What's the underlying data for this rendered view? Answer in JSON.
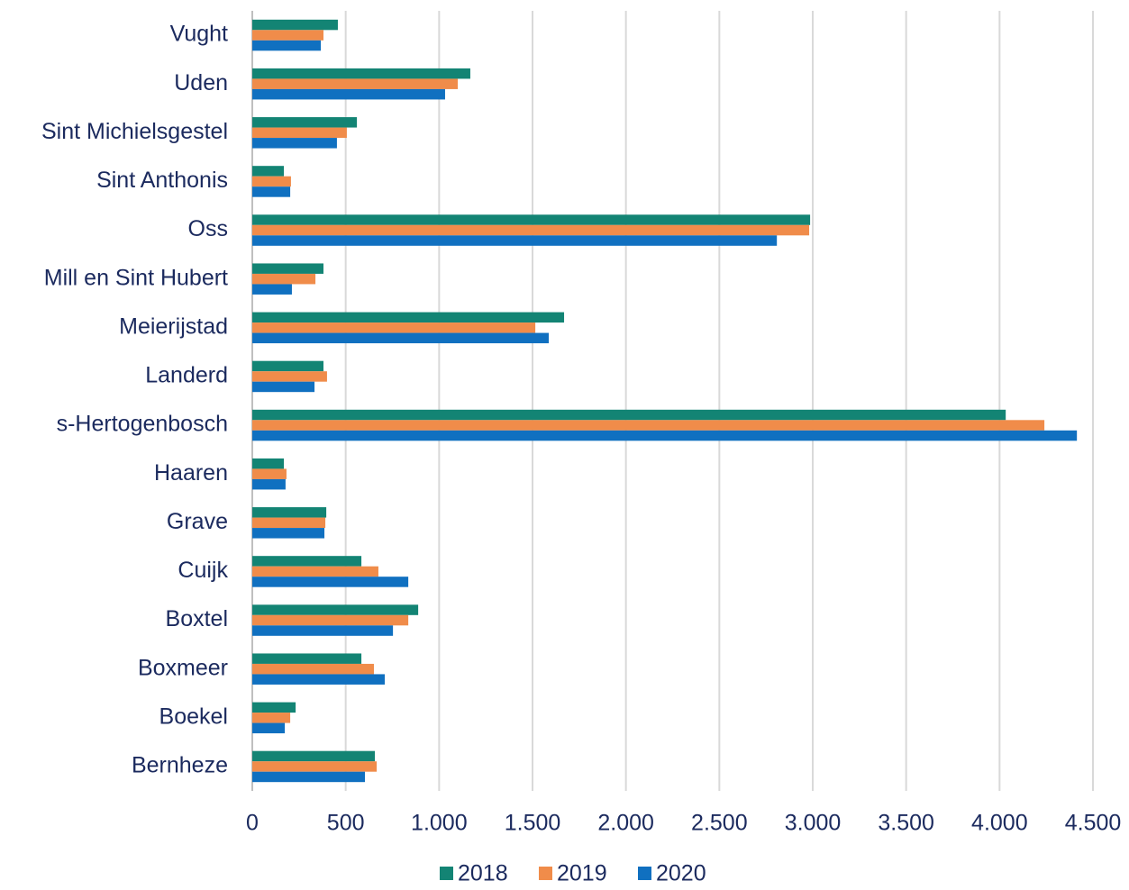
{
  "chart_data": {
    "type": "bar",
    "orientation": "horizontal",
    "categories": [
      "Vught",
      "Uden",
      "Sint Michielsgestel",
      "Sint Anthonis",
      "Oss",
      "Mill en Sint Hubert",
      "Meierijstad",
      "Landerd",
      "s-Hertogenbosch",
      "Haaren",
      "Grave",
      "Cuijk",
      "Boxtel",
      "Boxmeer",
      "Boekel",
      "Bernheze"
    ],
    "series": [
      {
        "name": "2018",
        "color": "#138474",
        "values": [
          458,
          1167,
          560,
          169,
          2986,
          381,
          1669,
          381,
          4033,
          169,
          396,
          584,
          888,
          584,
          232,
          656
        ]
      },
      {
        "name": "2019",
        "color": "#f08c4a",
        "values": [
          381,
          1100,
          506,
          207,
          2981,
          338,
          1515,
          400,
          4240,
          183,
          391,
          675,
          835,
          651,
          203,
          666
        ]
      },
      {
        "name": "2020",
        "color": "#1070c0",
        "values": [
          367,
          1032,
          453,
          203,
          2808,
          212,
          1587,
          333,
          4414,
          178,
          386,
          835,
          753,
          709,
          174,
          603
        ]
      }
    ],
    "xlim": [
      0,
      4500
    ],
    "xticks": [
      0,
      500,
      {
        "value": 1000,
        "label": "1.000"
      },
      {
        "value": 1500,
        "label": "1.500"
      },
      {
        "value": 2000,
        "label": "2.000"
      },
      {
        "value": 2500,
        "label": "2.500"
      },
      {
        "value": 3000,
        "label": "3.000"
      },
      {
        "value": 3500,
        "label": "3.500"
      },
      {
        "value": 4000,
        "label": "4.000"
      },
      {
        "value": 4500,
        "label": "4.500"
      }
    ],
    "grid": true,
    "legend": "bottom"
  }
}
